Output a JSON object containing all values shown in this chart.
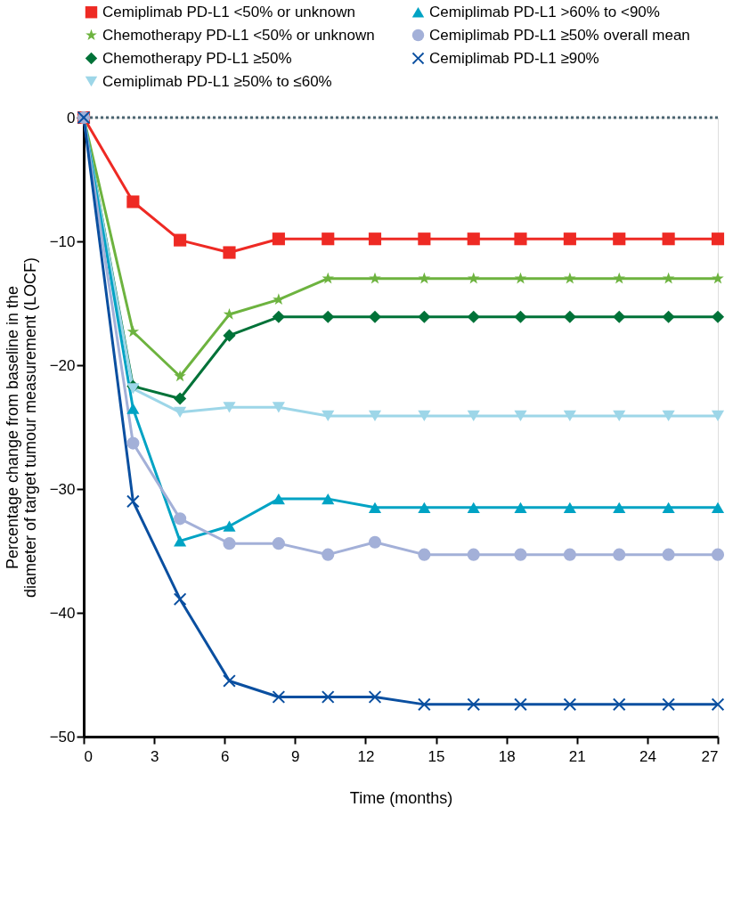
{
  "chart_data": {
    "type": "line",
    "xlabel": "Time (months)",
    "ylabel": "Percentage change from baseline in the\ndiameter of target tumour measurement (LOCF)",
    "x": [
      0,
      2.1,
      4.1,
      6.2,
      8.3,
      10.4,
      12.4,
      14.5,
      16.6,
      18.6,
      20.7,
      22.8,
      24.9,
      27
    ],
    "xlim": [
      0,
      27
    ],
    "xticks": [
      0,
      3,
      6,
      9,
      12,
      15,
      18,
      21,
      24,
      27
    ],
    "ylim": [
      -50,
      0
    ],
    "yticks": [
      -50,
      -40,
      -30,
      -20,
      -10,
      0
    ],
    "grid": false,
    "legend": "top",
    "line_style": "solid",
    "ref_lines": [
      {
        "axis": "y",
        "value": 0,
        "color": "#4a6470",
        "line_style": "dotted"
      }
    ],
    "series": [
      {
        "name": "Cemiplimab PD-L1 <50% or unknown",
        "color": "#ee2a24",
        "marker": "square",
        "values": [
          0,
          -6.8,
          -9.9,
          -10.9,
          -9.8,
          -9.8,
          -9.8,
          -9.8,
          -9.8,
          -9.8,
          -9.8,
          -9.8,
          -9.8,
          -9.8
        ]
      },
      {
        "name": "Chemotherapy PD-L1 <50% or unknown",
        "color": "#6db33f",
        "marker": "star",
        "values": [
          0,
          -17.3,
          -20.9,
          -15.9,
          -14.7,
          -13.0,
          -13.0,
          -13.0,
          -13.0,
          -13.0,
          -13.0,
          -13.0,
          -13.0,
          -13.0
        ]
      },
      {
        "name": "Chemotherapy PD-L1 ≥50%",
        "color": "#007238",
        "marker": "diamond",
        "values": [
          0,
          -21.7,
          -22.7,
          -17.6,
          -16.1,
          -16.1,
          -16.1,
          -16.1,
          -16.1,
          -16.1,
          -16.1,
          -16.1,
          -16.1,
          -16.1
        ]
      },
      {
        "name": "Cemiplimab PD-L1 ≥50% to ≤60%",
        "color": "#9dd6e8",
        "marker": "triangle-down",
        "values": [
          0,
          -21.9,
          -23.8,
          -23.4,
          -23.4,
          -24.1,
          -24.1,
          -24.1,
          -24.1,
          -24.1,
          -24.1,
          -24.1,
          -24.1,
          -24.1
        ]
      },
      {
        "name": "Cemiplimab PD-L1 >60% to <90%",
        "color": "#00a3c4",
        "marker": "triangle",
        "values": [
          0,
          -23.5,
          -34.2,
          -33.0,
          -30.8,
          -30.8,
          -31.5,
          -31.5,
          -31.5,
          -31.5,
          -31.5,
          -31.5,
          -31.5,
          -31.5
        ]
      },
      {
        "name": "Cemiplimab PD-L1 ≥50% overall mean",
        "color": "#a3b0d8",
        "marker": "circle",
        "values": [
          0,
          -26.3,
          -32.4,
          -34.4,
          -34.4,
          -35.3,
          -34.3,
          -35.3,
          -35.3,
          -35.3,
          -35.3,
          -35.3,
          -35.3,
          -35.3
        ]
      },
      {
        "name": "Cemiplimab PD-L1 ≥90%",
        "color": "#0a4fa0",
        "marker": "cross",
        "values": [
          0,
          -31.0,
          -38.9,
          -45.5,
          -46.8,
          -46.8,
          -46.8,
          -47.4,
          -47.4,
          -47.4,
          -47.4,
          -47.4,
          -47.4,
          -47.4
        ]
      }
    ]
  }
}
